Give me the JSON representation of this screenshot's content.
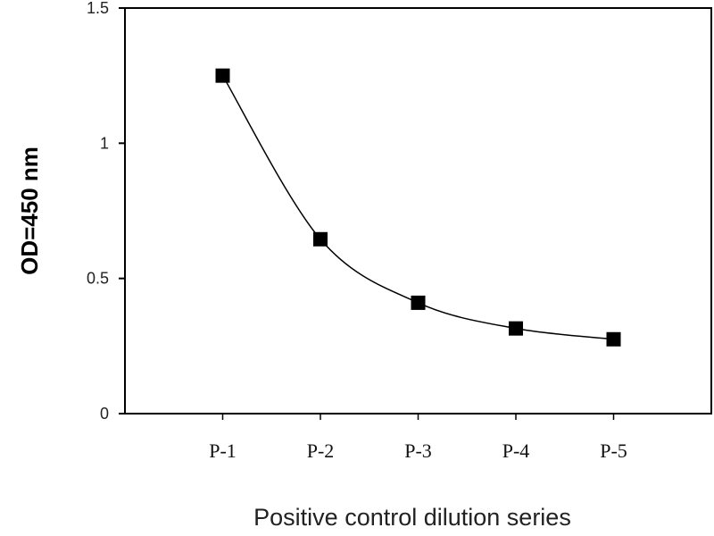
{
  "chart_data": {
    "type": "line",
    "title": "",
    "xlabel": "Positive control dilution series",
    "ylabel": "OD=450 nm",
    "categories": [
      "P-1",
      "P-2",
      "P-3",
      "P-4",
      "P-5"
    ],
    "series": [
      {
        "name": "OD450",
        "values": [
          1.25,
          0.645,
          0.41,
          0.315,
          0.275
        ],
        "color": "#000000",
        "marker": "square",
        "smooth": true
      }
    ],
    "ylim": [
      0,
      1.5
    ],
    "yticks": [
      0,
      0.5,
      1,
      1.5
    ],
    "ytick_labels": [
      "0",
      "0.5",
      "1",
      "1.5"
    ],
    "grid": false,
    "legend": "none"
  }
}
